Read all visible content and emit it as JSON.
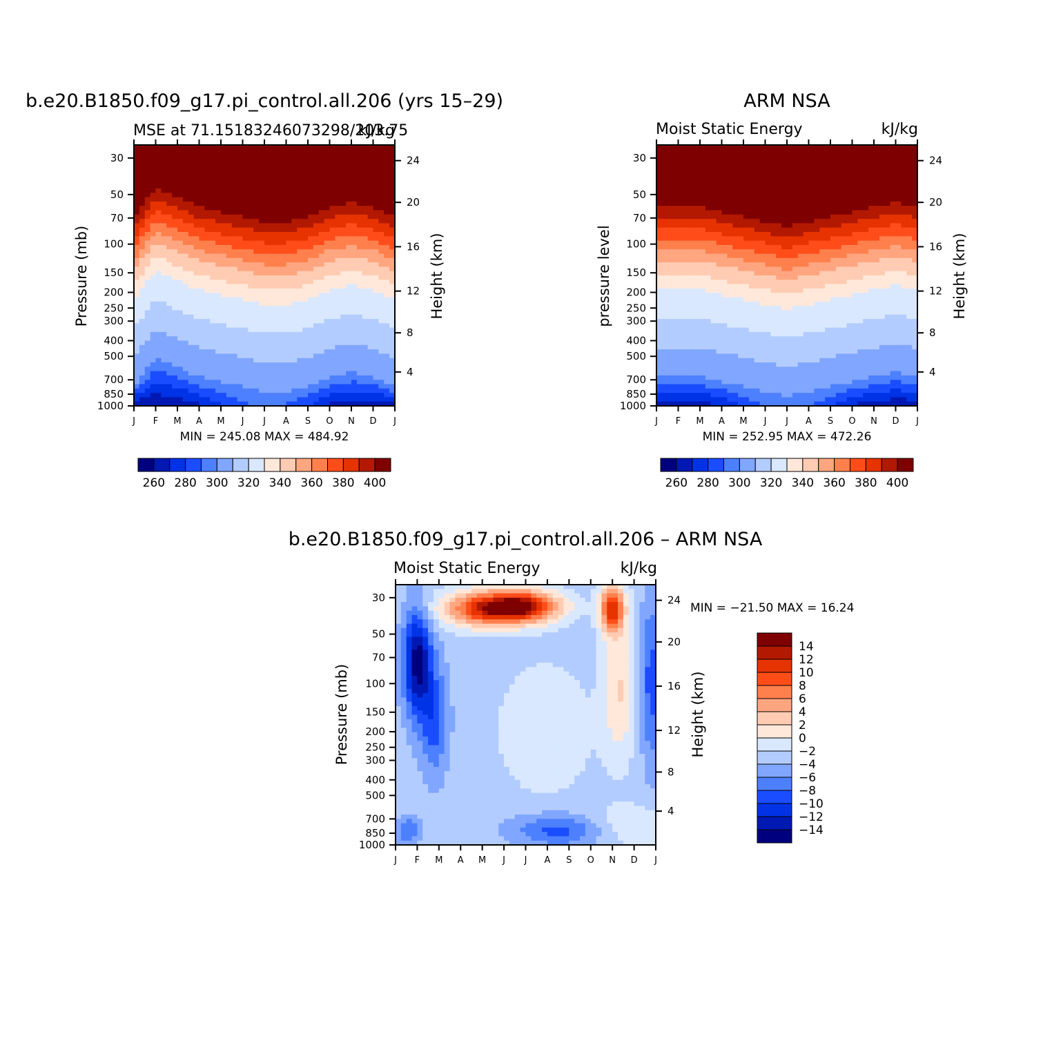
{
  "chart_data": [
    {
      "type": "contour",
      "id": "model",
      "title": "b.e20.B1850.f09_g17.pi_control.all.206 (yrs 15–29)",
      "subtitle_left": "MSE at 71.15183246073298/203.75",
      "subtitle_right": "kJ/kg",
      "ylabel": "Pressure (mb)",
      "ylabel_right": "Height (km)",
      "x_ticks": [
        "J",
        "F",
        "M",
        "A",
        "M",
        "J",
        "J",
        "A",
        "S",
        "O",
        "N",
        "D",
        "J"
      ],
      "pressure_ticks": [
        "30",
        "50",
        "70",
        "100",
        "150",
        "200",
        "250",
        "300",
        "400",
        "500",
        "700",
        "850",
        "1000"
      ],
      "height_ticks": [
        "24",
        "20",
        "16",
        "12",
        "8",
        "4"
      ],
      "stats": "MIN = 245.08 MAX = 484.92",
      "min": 245.08,
      "max": 484.92,
      "levels": [
        260,
        270,
        280,
        290,
        300,
        310,
        320,
        330,
        340,
        350,
        360,
        370,
        380,
        390,
        400
      ],
      "colorbar_labels": [
        "260",
        "280",
        "300",
        "320",
        "340",
        "360",
        "380",
        "400"
      ],
      "trop_offsets": [
        0,
        3,
        2,
        1,
        0.5,
        0,
        -0.5,
        -0.5,
        0,
        1,
        1.5,
        1,
        0
      ],
      "surface_mins": [
        262,
        260,
        262,
        268,
        278,
        288,
        290,
        288,
        280,
        268,
        264,
        262,
        262
      ]
    },
    {
      "type": "contour",
      "id": "obs",
      "title": "ARM NSA",
      "subtitle_left": "Moist Static Energy",
      "subtitle_right": "kJ/kg",
      "ylabel": "pressure level",
      "ylabel_right": "Height (km)",
      "x_ticks": [
        "J",
        "F",
        "M",
        "A",
        "M",
        "J",
        "J",
        "A",
        "S",
        "O",
        "N",
        "D",
        "J"
      ],
      "pressure_ticks": [
        "30",
        "50",
        "70",
        "100",
        "150",
        "200",
        "250",
        "300",
        "400",
        "500",
        "700",
        "850",
        "1000"
      ],
      "height_ticks": [
        "24",
        "20",
        "16",
        "12",
        "8",
        "4"
      ],
      "stats": "MIN = 252.95 MAX = 472.26",
      "min": 252.95,
      "max": 472.26,
      "levels": [
        260,
        270,
        280,
        290,
        300,
        310,
        320,
        330,
        340,
        350,
        360,
        370,
        380,
        390,
        400
      ],
      "colorbar_labels": [
        "260",
        "280",
        "300",
        "320",
        "340",
        "360",
        "380",
        "400"
      ],
      "trop_offsets": [
        1,
        1,
        1,
        0.5,
        0,
        -0.5,
        -1,
        -0.5,
        0,
        0.5,
        1,
        1.5,
        1
      ],
      "surface_mins": [
        262,
        262,
        264,
        270,
        280,
        292,
        294,
        292,
        282,
        268,
        264,
        262,
        262
      ]
    },
    {
      "type": "contour",
      "id": "diff",
      "title": "b.e20.B1850.f09_g17.pi_control.all.206 – ARM NSA",
      "subtitle_left": "Moist Static Energy",
      "subtitle_right": "kJ/kg",
      "ylabel": "Pressure (mb)",
      "ylabel_right": "Height (km)",
      "x_ticks": [
        "J",
        "F",
        "M",
        "A",
        "M",
        "J",
        "J",
        "A",
        "S",
        "O",
        "N",
        "D",
        "J"
      ],
      "pressure_ticks": [
        "30",
        "50",
        "70",
        "100",
        "150",
        "200",
        "250",
        "300",
        "400",
        "500",
        "700",
        "850",
        "1000"
      ],
      "height_ticks": [
        "24",
        "20",
        "16",
        "12",
        "8",
        "4"
      ],
      "stats": "MIN = −21.50 MAX =   16.24",
      "min": -21.5,
      "max": 16.24,
      "levels": [
        -14,
        -12,
        -10,
        -8,
        -6,
        -4,
        -2,
        0,
        2,
        4,
        6,
        8,
        10,
        12,
        14
      ],
      "colorbar_labels": [
        "14",
        "12",
        "10",
        "8",
        "6",
        "4",
        "2",
        "0",
        "−2",
        "−4",
        "−6",
        "−8",
        "−10",
        "−12",
        "−14"
      ]
    }
  ],
  "palette": [
    "#00007f",
    "#0019b3",
    "#0033e6",
    "#1a4dff",
    "#4d80ff",
    "#80a6ff",
    "#b3ccff",
    "#d9e8ff",
    "#ffe8d9",
    "#ffccb3",
    "#ffa680",
    "#ff804d",
    "#ff4d1a",
    "#e63300",
    "#b31900",
    "#7f0000"
  ]
}
